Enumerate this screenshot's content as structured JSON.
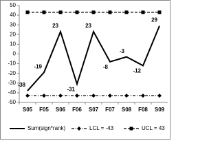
{
  "chart_data": {
    "type": "line",
    "categories": [
      "S05",
      "F05",
      "S06",
      "F06",
      "S07",
      "F07",
      "S08",
      "F08",
      "S09"
    ],
    "series": [
      {
        "name": "Sum(sign*rank)",
        "color": "#000000",
        "values": [
          -38,
          -19,
          23,
          -31,
          23,
          -8,
          -3,
          -12,
          29
        ]
      },
      {
        "name": "LCL = -43",
        "color": "#000000",
        "values": [
          -43,
          -43,
          -43,
          -43,
          -43,
          -43,
          -43,
          -43,
          -43
        ]
      },
      {
        "name": "UCL = 43",
        "color": "#000000",
        "values": [
          43,
          43,
          43,
          43,
          43,
          43,
          43,
          43,
          43
        ]
      }
    ],
    "ylim": [
      -50,
      50
    ],
    "yticks": [
      -50,
      -40,
      -30,
      -20,
      -10,
      0,
      10,
      20,
      30,
      40,
      50
    ],
    "legend": "bottom",
    "grid": false
  }
}
